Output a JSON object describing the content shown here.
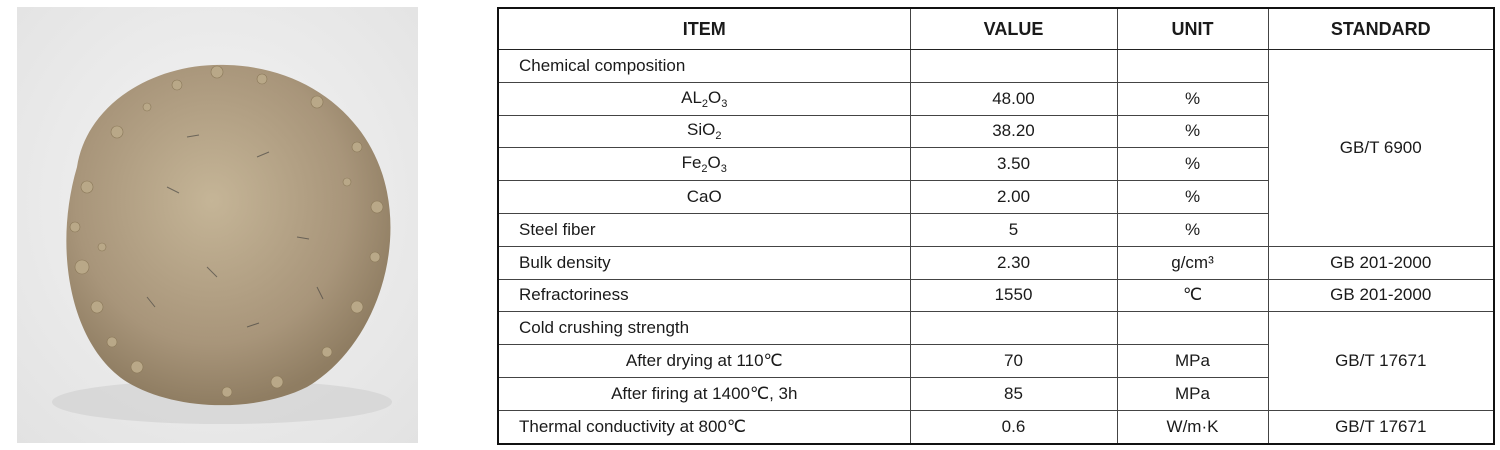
{
  "table": {
    "header": [
      "ITEM",
      "VALUE",
      "UNIT",
      "STANDARD"
    ],
    "rows": [
      {
        "item": [
          "Chemical composition"
        ],
        "value": "",
        "unit": "",
        "standard": "GB/T 6900"
      },
      {
        "item": [
          "AL",
          "2",
          "O",
          "3"
        ],
        "value": "48.00",
        "unit": "%"
      },
      {
        "item": [
          "SiO",
          "2"
        ],
        "value": "38.20",
        "unit": "%"
      },
      {
        "item": [
          "Fe",
          "2",
          "O",
          "3"
        ],
        "value": "3.50",
        "unit": "%"
      },
      {
        "item": [
          "CaO"
        ],
        "value": "2.00",
        "unit": "%"
      },
      {
        "item": [
          "Steel fiber"
        ],
        "value": "5",
        "unit": "%"
      },
      {
        "item": [
          "Bulk density"
        ],
        "value": "2.30",
        "unit": "g/cm³",
        "standard": "GB 201-2000"
      },
      {
        "item": [
          "Refractoriness"
        ],
        "value": "1550",
        "unit": "℃",
        "standard": "GB 201-2000"
      },
      {
        "item": [
          "Cold crushing strength"
        ],
        "value": "",
        "unit": "",
        "standard": "GB/T 17671"
      },
      {
        "item": [
          "After drying at 110℃"
        ],
        "value": "70",
        "unit": "MPa"
      },
      {
        "item": [
          "After firing at 1400℃, 3h"
        ],
        "value": "85",
        "unit": "MPa"
      },
      {
        "item": [
          "Thermal conductivity at 800℃"
        ],
        "value": "0.6",
        "unit": "W/m·K",
        "standard": "GB/T 17671"
      }
    ]
  }
}
